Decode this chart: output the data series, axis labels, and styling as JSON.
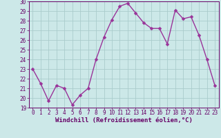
{
  "x": [
    0,
    1,
    2,
    3,
    4,
    5,
    6,
    7,
    8,
    9,
    10,
    11,
    12,
    13,
    14,
    15,
    16,
    17,
    18,
    19,
    20,
    21,
    22,
    23
  ],
  "y": [
    23.0,
    21.5,
    19.7,
    21.3,
    21.0,
    19.3,
    20.3,
    21.0,
    24.0,
    26.3,
    28.1,
    29.5,
    29.8,
    28.8,
    27.8,
    27.2,
    27.2,
    25.6,
    29.1,
    28.2,
    28.4,
    26.5,
    24.0,
    21.3
  ],
  "line_color": "#993399",
  "marker_color": "#993399",
  "bg_color": "#cce8e8",
  "grid_color": "#aacccc",
  "xlabel": "Windchill (Refroidissement éolien,°C)",
  "ylim": [
    19,
    30
  ],
  "xlim": [
    -0.5,
    23.5
  ],
  "yticks": [
    19,
    20,
    21,
    22,
    23,
    24,
    25,
    26,
    27,
    28,
    29,
    30
  ],
  "xticks": [
    0,
    1,
    2,
    3,
    4,
    5,
    6,
    7,
    8,
    9,
    10,
    11,
    12,
    13,
    14,
    15,
    16,
    17,
    18,
    19,
    20,
    21,
    22,
    23
  ],
  "title_color": "#660066",
  "axis_color": "#660066",
  "tick_fontsize": 5.5,
  "xlabel_fontsize": 6.5,
  "linewidth": 1.0,
  "markersize": 2.5
}
